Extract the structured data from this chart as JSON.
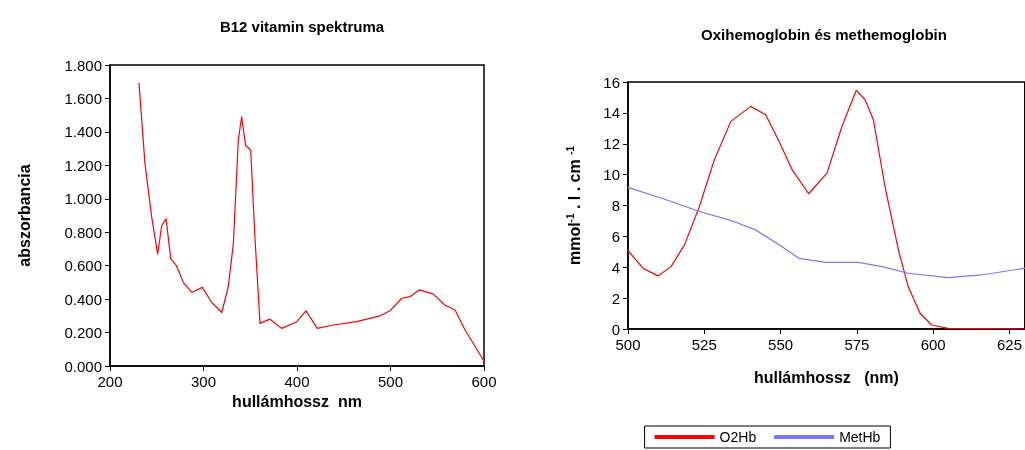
{
  "chart_data": [
    {
      "type": "line",
      "title": "B12 vitamin spektruma",
      "xlabel": "hullámhossz  nm",
      "ylabel": "abszorbancia",
      "x": [
        231,
        237.4,
        244.6,
        251,
        255.3,
        260,
        265,
        271,
        278.4,
        287.4,
        298.7,
        308.8,
        319.5,
        326.5,
        331.9,
        337.2,
        340.8,
        345,
        350.5,
        355,
        360.4,
        371,
        383.6,
        399.7,
        409.6,
        421.7,
        438.8,
        463.8,
        488.8,
        499.5,
        512,
        521,
        530.8,
        545.8,
        558,
        569,
        579.7,
        600
      ],
      "series": [
        {
          "color": "#ff0000",
          "values": [
            1.69,
            1.21,
            0.89,
            0.67,
            0.84,
            0.88,
            0.64,
            0.6,
            0.5,
            0.44,
            0.47,
            0.38,
            0.32,
            0.475,
            0.73,
            1.35,
            1.49,
            1.32,
            1.29,
            0.77,
            0.255,
            0.28,
            0.225,
            0.265,
            0.33,
            0.225,
            0.245,
            0.265,
            0.3,
            0.33,
            0.405,
            0.415,
            0.455,
            0.43,
            0.365,
            0.335,
            0.215,
            0.03
          ]
        }
      ],
      "xlim": [
        200,
        600
      ],
      "xticks": [
        200,
        300,
        400,
        500,
        600
      ],
      "ylim": [
        0,
        1.8
      ],
      "yticks": [
        {
          "value": 0,
          "label": "0.000"
        },
        {
          "value": 0.2,
          "label": "0.200"
        },
        {
          "value": 0.4,
          "label": "0.400"
        },
        {
          "value": 0.6,
          "label": "0.600"
        },
        {
          "value": 0.8,
          "label": "0.800"
        },
        {
          "value": 1,
          "label": "1.000"
        },
        {
          "value": 1.2,
          "label": "1.200"
        },
        {
          "value": 1.4,
          "label": "1.400"
        },
        {
          "value": 1.6,
          "label": "1.600"
        },
        {
          "value": 1.8,
          "label": "1.800"
        }
      ],
      "grid": false,
      "legend": false,
      "marker": "none"
    },
    {
      "type": "line",
      "title": "Oxihemoglobin és methemoglobin",
      "xlabel": "hullámhossz   (nm)",
      "ylabel": "mmol$^{-1}$ . l . cm $^{-1}$",
      "series": [
        {
          "name": "O2Hb",
          "color": "#ff0000",
          "x": [
            500,
            504.9,
            509.8,
            514.1,
            518.5,
            523.4,
            528.3,
            533.7,
            540.2,
            545.1,
            549.5,
            553.8,
            559.2,
            565.2,
            570.1,
            574.8,
            577.7,
            580.4,
            584.2,
            588.6,
            591.8,
            595.7,
            599.5,
            604.9,
            630
          ],
          "values": [
            5.08,
            3.94,
            3.44,
            4.04,
            5.45,
            7.94,
            10.96,
            13.45,
            14.42,
            13.88,
            12.15,
            10.31,
            8.76,
            10.1,
            13.12,
            15.46,
            14.85,
            13.56,
            9.23,
            5.12,
            2.75,
            1.02,
            0.26,
            0.04,
            0
          ]
        },
        {
          "name": "MetHb",
          "color": "#7878ff",
          "x": [
            500,
            512.5,
            523.4,
            534.2,
            541.8,
            549.5,
            556,
            564.7,
            575.5,
            583.2,
            591.8,
            604.9,
            615.8,
            630
          ],
          "values": [
            9.17,
            8.37,
            7.61,
            7.0,
            6.42,
            5.45,
            4.58,
            4.32,
            4.32,
            4.04,
            3.61,
            3.33,
            3.5,
            3.94
          ]
        }
      ],
      "xlim": [
        500,
        630
      ],
      "xticks": [
        500,
        525,
        550,
        575,
        600,
        625
      ],
      "ylim": [
        0,
        16
      ],
      "yticks": [
        0,
        2,
        4,
        6,
        8,
        10,
        12,
        14,
        16
      ],
      "grid": false,
      "legend": "bottom",
      "marker": "none"
    }
  ]
}
